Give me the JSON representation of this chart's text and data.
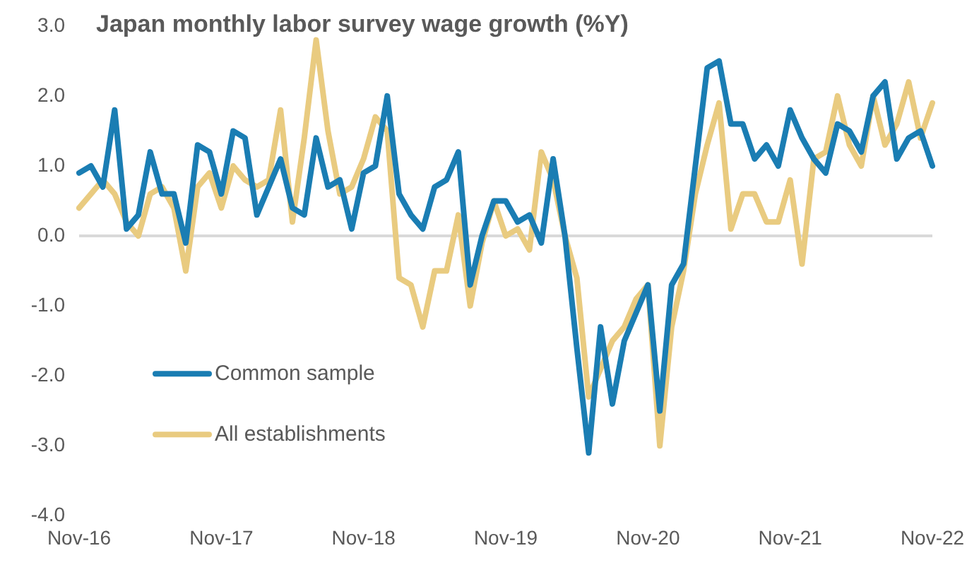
{
  "chart_data": {
    "type": "line",
    "title": "Japan monthly labor survey wage growth (%Y)",
    "categories": [
      "Nov-16",
      null,
      null,
      null,
      null,
      null,
      null,
      null,
      null,
      null,
      null,
      null,
      "Nov-17",
      null,
      null,
      null,
      null,
      null,
      null,
      null,
      null,
      null,
      null,
      null,
      "Nov-18",
      null,
      null,
      null,
      null,
      null,
      null,
      null,
      null,
      null,
      null,
      null,
      "Nov-19",
      null,
      null,
      null,
      null,
      null,
      null,
      null,
      null,
      null,
      null,
      null,
      "Nov-20",
      null,
      null,
      null,
      null,
      null,
      null,
      null,
      null,
      null,
      null,
      null,
      "Nov-21",
      null,
      null,
      null,
      null,
      null,
      null,
      null,
      null,
      null,
      null,
      null,
      "Nov-22"
    ],
    "series": [
      {
        "name": "Common sample",
        "color": "#1a7db3",
        "values": [
          0.9,
          1.0,
          0.7,
          1.8,
          0.1,
          0.3,
          1.2,
          0.6,
          0.6,
          -0.1,
          1.3,
          1.2,
          0.6,
          1.5,
          1.4,
          0.3,
          0.7,
          1.1,
          0.4,
          0.3,
          1.4,
          0.7,
          0.8,
          0.1,
          0.9,
          1.0,
          2.0,
          0.6,
          0.3,
          0.1,
          0.7,
          0.8,
          1.2,
          -0.7,
          0.0,
          0.5,
          0.5,
          0.2,
          0.3,
          -0.1,
          1.1,
          0.0,
          -1.6,
          -3.1,
          -1.3,
          -2.4,
          -1.5,
          -1.1,
          -0.7,
          -2.5,
          -0.7,
          -0.4,
          1.0,
          2.4,
          2.5,
          1.6,
          1.6,
          1.1,
          1.3,
          1.0,
          1.8,
          1.4,
          1.1,
          0.9,
          1.6,
          1.5,
          1.2,
          2.0,
          2.2,
          1.1,
          1.4,
          1.5,
          1.0
        ]
      },
      {
        "name": "All establishments",
        "color": "#e9cb80",
        "values": [
          0.4,
          0.6,
          0.8,
          0.6,
          0.2,
          0.0,
          0.6,
          0.7,
          0.4,
          -0.5,
          0.7,
          0.9,
          0.4,
          1.0,
          0.8,
          0.7,
          0.8,
          1.8,
          0.2,
          1.4,
          2.8,
          1.5,
          0.6,
          0.7,
          1.1,
          1.7,
          1.5,
          -0.6,
          -0.7,
          -1.3,
          -0.5,
          -0.5,
          0.3,
          -1.0,
          -0.1,
          0.5,
          0.0,
          0.1,
          -0.2,
          1.2,
          0.8,
          0.0,
          -0.6,
          -2.3,
          -1.9,
          -1.5,
          -1.3,
          -0.9,
          -0.7,
          -3.0,
          -1.3,
          -0.5,
          0.6,
          1.3,
          1.9,
          0.1,
          0.6,
          0.6,
          0.2,
          0.2,
          0.8,
          -0.4,
          1.1,
          1.2,
          2.0,
          1.3,
          1.0,
          2.0,
          1.3,
          1.6,
          2.2,
          1.4,
          1.9
        ]
      }
    ],
    "ylim": [
      -4,
      3
    ],
    "yticks": [
      {
        "value": 3,
        "label": "3.0"
      },
      {
        "value": 2,
        "label": "2.0"
      },
      {
        "value": 1,
        "label": "1.0"
      },
      {
        "value": 0,
        "label": "0.0"
      },
      {
        "value": -1,
        "label": "-1.0"
      },
      {
        "value": -2,
        "label": "-2.0"
      },
      {
        "value": -3,
        "label": "-3.0"
      },
      {
        "value": -4,
        "label": "-4.0"
      }
    ],
    "grid": false,
    "ref_lines": [
      {
        "axis": "y",
        "value": 0,
        "color": "#d9d9d9"
      }
    ],
    "legend": "bottom left",
    "marker": "none",
    "line_style": "solid"
  }
}
